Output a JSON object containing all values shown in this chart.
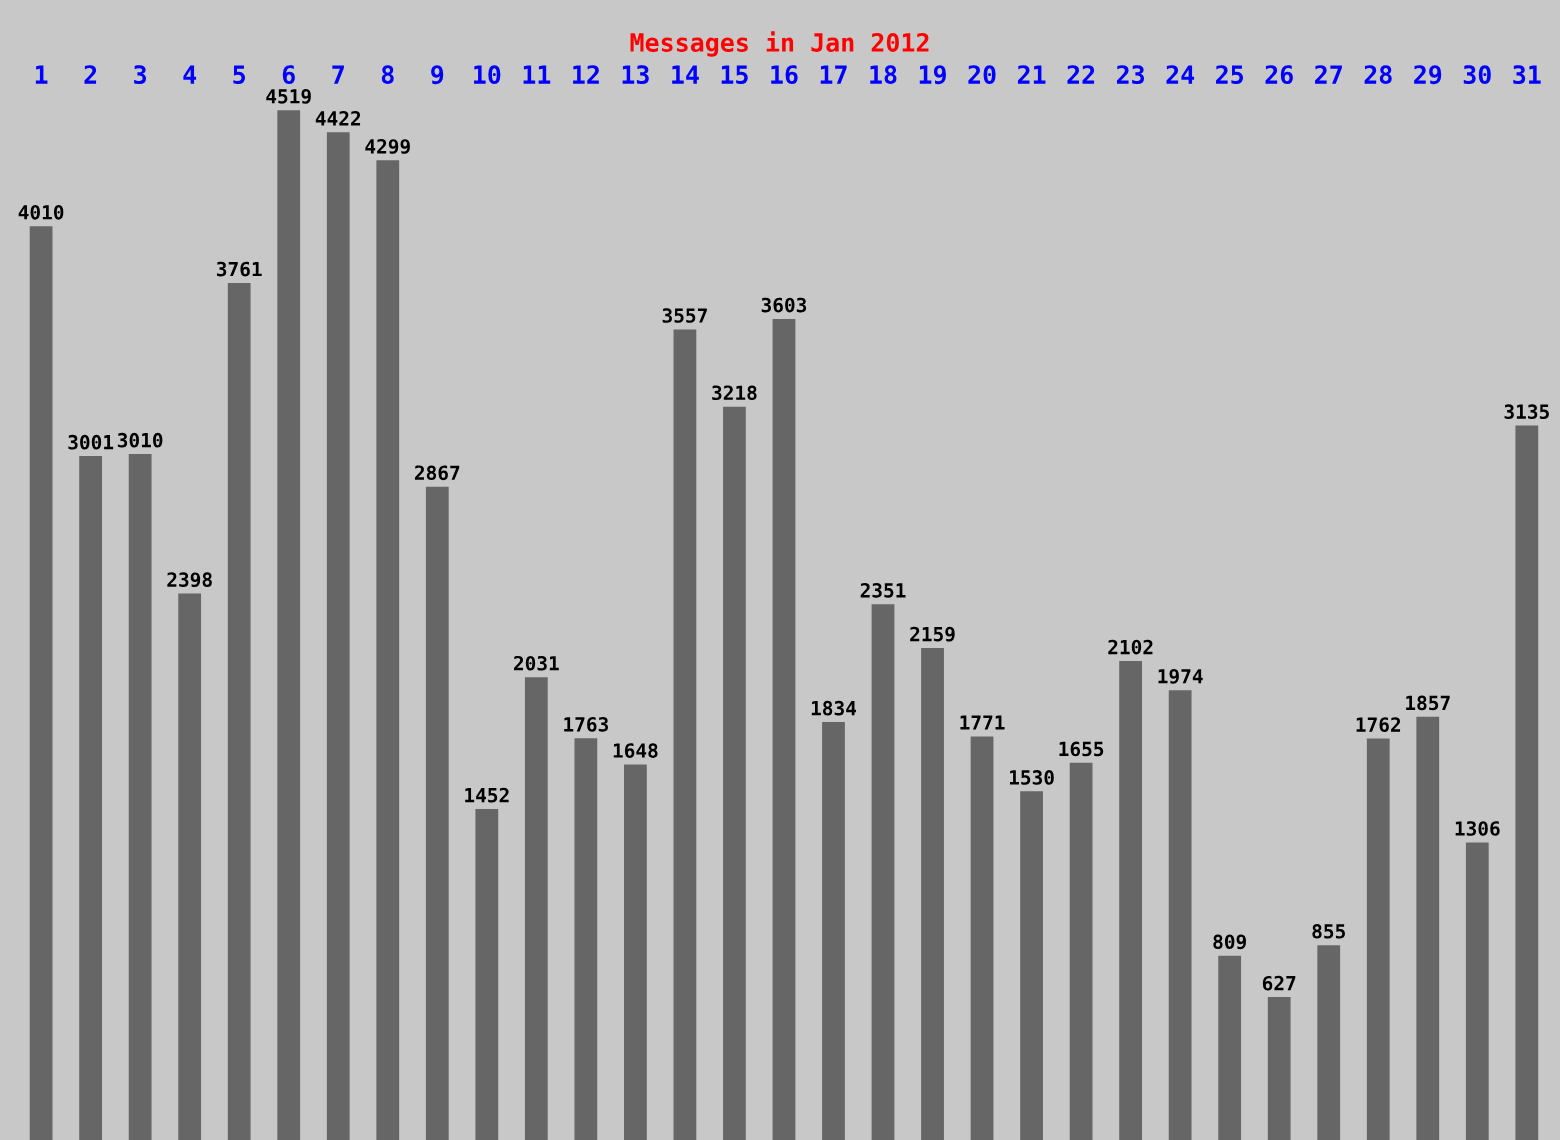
{
  "chart_data": {
    "type": "bar",
    "title": "Messages in Jan 2012",
    "categories": [
      "1",
      "2",
      "3",
      "4",
      "5",
      "6",
      "7",
      "8",
      "9",
      "10",
      "11",
      "12",
      "13",
      "14",
      "15",
      "16",
      "17",
      "18",
      "19",
      "20",
      "21",
      "22",
      "23",
      "24",
      "25",
      "26",
      "27",
      "28",
      "29",
      "30",
      "31"
    ],
    "values": [
      4010,
      3001,
      3010,
      2398,
      3761,
      4519,
      4422,
      4299,
      2867,
      1452,
      2031,
      1763,
      1648,
      3557,
      3218,
      3603,
      1834,
      2351,
      2159,
      1771,
      1530,
      1655,
      2102,
      1974,
      809,
      627,
      855,
      1762,
      1857,
      1306,
      3135
    ],
    "color": "#666666",
    "data_labels": true
  }
}
